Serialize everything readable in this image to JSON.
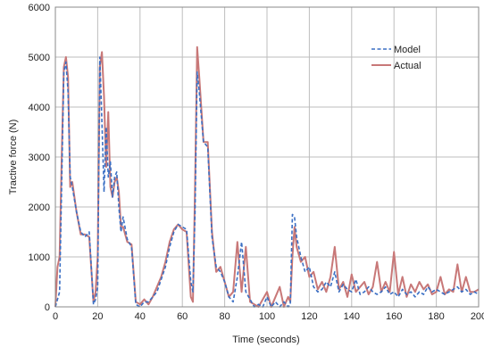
{
  "chart_data": {
    "type": "line",
    "title": "",
    "xlabel": "Time (seconds)",
    "ylabel": "Tractive force (N)",
    "xlim": [
      0,
      200
    ],
    "ylim": [
      0,
      6000
    ],
    "x_ticks": [
      "0",
      "20",
      "40",
      "60",
      "80",
      "100",
      "120",
      "140",
      "160",
      "180",
      "200"
    ],
    "y_ticks": [
      "0",
      "1000",
      "2000",
      "3000",
      "4000",
      "5000",
      "6000"
    ],
    "grid": true,
    "legend_position": "top-right",
    "series": [
      {
        "name": "Model",
        "color": "#3a6fc4",
        "style": "dashed",
        "x": [
          0,
          2,
          3,
          4,
          5,
          6,
          7,
          8,
          10,
          12,
          14,
          16,
          18,
          19,
          20,
          21,
          22,
          23,
          24,
          25,
          26,
          27,
          28,
          29,
          30,
          31,
          32,
          34,
          36,
          38,
          40,
          42,
          44,
          46,
          48,
          50,
          52,
          54,
          56,
          58,
          60,
          62,
          64,
          65,
          66,
          67,
          68,
          70,
          72,
          74,
          76,
          78,
          80,
          82,
          84,
          86,
          88,
          90,
          92,
          94,
          96,
          98,
          100,
          102,
          104,
          106,
          108,
          110,
          111,
          112,
          113,
          114,
          116,
          118,
          120,
          122,
          124,
          126,
          128,
          130,
          132,
          134,
          136,
          138,
          140,
          142,
          144,
          146,
          148,
          150,
          152,
          154,
          156,
          158,
          160,
          162,
          164,
          166,
          168,
          170,
          172,
          174,
          176,
          178,
          180,
          182,
          184,
          186,
          188,
          190,
          192,
          194,
          196,
          198,
          200
        ],
        "values": [
          0,
          300,
          2500,
          4700,
          4900,
          4300,
          2600,
          2400,
          1900,
          1500,
          1400,
          1500,
          50,
          150,
          400,
          5000,
          3700,
          2300,
          3600,
          2600,
          2900,
          2200,
          2600,
          2700,
          2000,
          1500,
          1800,
          1350,
          1200,
          50,
          0,
          100,
          100,
          200,
          300,
          550,
          800,
          1200,
          1500,
          1650,
          1600,
          1550,
          500,
          300,
          1900,
          4700,
          4300,
          3300,
          3200,
          1400,
          800,
          700,
          500,
          200,
          100,
          600,
          1300,
          300,
          150,
          0,
          50,
          0,
          200,
          0,
          100,
          0,
          100,
          0,
          50,
          1850,
          1800,
          1400,
          1000,
          700,
          800,
          400,
          300,
          350,
          500,
          400,
          700,
          300,
          450,
          350,
          300,
          550,
          250,
          300,
          400,
          300,
          250,
          300,
          400,
          250,
          300,
          200,
          350,
          250,
          300,
          200,
          300,
          250,
          400,
          300,
          350,
          300,
          250,
          300,
          350,
          400,
          300,
          350,
          250,
          300,
          250
        ]
      },
      {
        "name": "Actual",
        "color": "#c87878",
        "style": "solid",
        "x": [
          0,
          1,
          2,
          3,
          4,
          5,
          6,
          7,
          8,
          10,
          12,
          14,
          16,
          18,
          19,
          20,
          21,
          22,
          23,
          24,
          25,
          26,
          27,
          28,
          29,
          30,
          31,
          32,
          34,
          36,
          38,
          40,
          42,
          44,
          46,
          48,
          50,
          52,
          54,
          56,
          58,
          60,
          62,
          64,
          65,
          66,
          67,
          68,
          70,
          72,
          74,
          76,
          78,
          80,
          82,
          84,
          86,
          88,
          90,
          92,
          94,
          96,
          98,
          100,
          102,
          104,
          106,
          108,
          110,
          111,
          112,
          113,
          114,
          116,
          118,
          120,
          122,
          124,
          126,
          128,
          130,
          132,
          134,
          136,
          138,
          140,
          142,
          144,
          146,
          148,
          150,
          152,
          154,
          156,
          158,
          160,
          162,
          164,
          166,
          168,
          170,
          172,
          174,
          176,
          178,
          180,
          182,
          184,
          186,
          188,
          190,
          192,
          194,
          196,
          198,
          200
        ],
        "values": [
          0,
          800,
          1000,
          3000,
          4800,
          5000,
          4600,
          2400,
          2500,
          1900,
          1450,
          1450,
          1400,
          100,
          300,
          1000,
          4800,
          5100,
          4200,
          2800,
          3900,
          2400,
          2200,
          2500,
          2600,
          2300,
          1600,
          1600,
          1300,
          1250,
          100,
          50,
          150,
          50,
          200,
          400,
          600,
          900,
          1300,
          1550,
          1650,
          1550,
          1500,
          200,
          100,
          2400,
          5200,
          4600,
          3300,
          3300,
          1500,
          700,
          800,
          500,
          200,
          300,
          1300,
          300,
          1200,
          100,
          50,
          0,
          150,
          300,
          0,
          200,
          400,
          0,
          200,
          100,
          1000,
          1600,
          1200,
          900,
          1000,
          600,
          700,
          350,
          500,
          300,
          600,
          1200,
          350,
          500,
          200,
          650,
          300,
          400,
          500,
          250,
          400,
          900,
          300,
          500,
          300,
          1100,
          250,
          600,
          200,
          450,
          300,
          500,
          350,
          450,
          250,
          300,
          600,
          250,
          350,
          300,
          850,
          300,
          600,
          300,
          300,
          350
        ]
      }
    ]
  }
}
